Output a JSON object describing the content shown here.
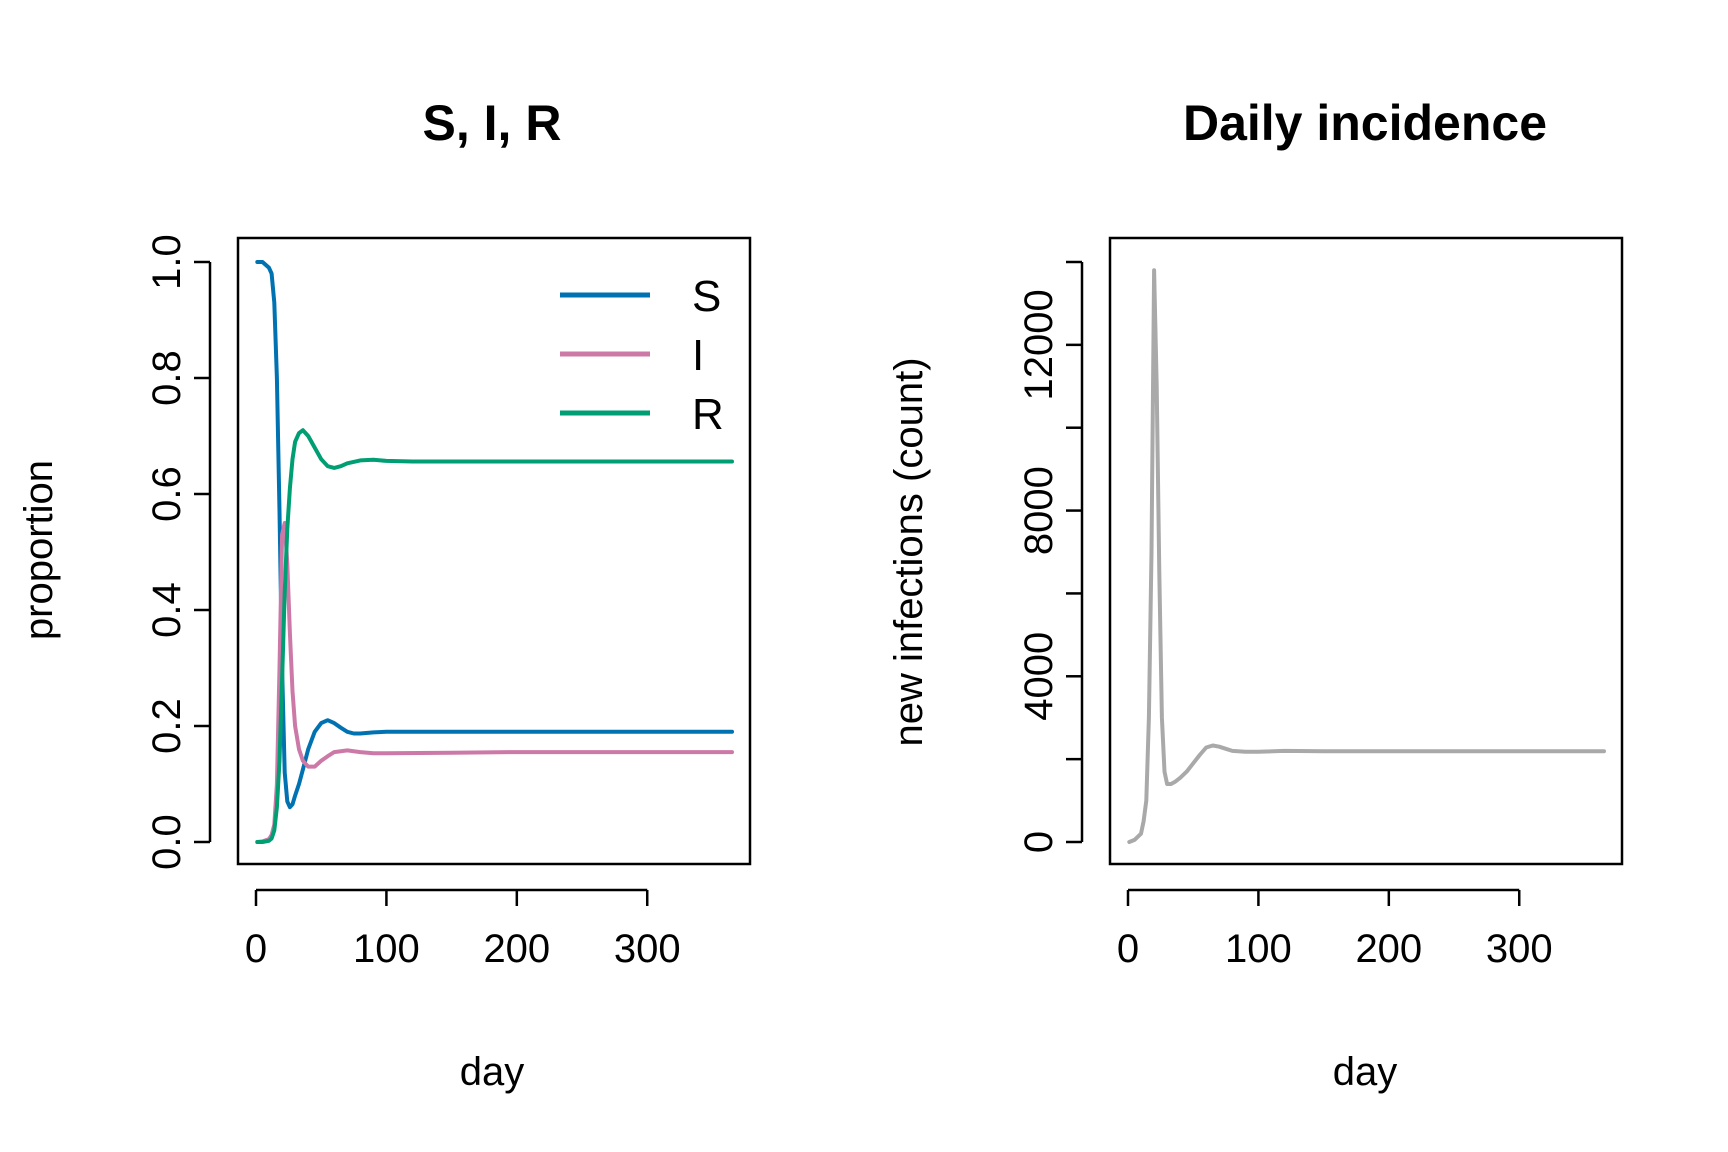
{
  "chart_data": [
    {
      "type": "line",
      "title": "S, I, R",
      "xlabel": "day",
      "ylabel": "proportion",
      "xlim": [
        0,
        365
      ],
      "ylim": [
        0,
        1
      ],
      "xticks": [
        0,
        100,
        200,
        300
      ],
      "yticks": [
        0.0,
        0.2,
        0.4,
        0.6,
        0.8,
        1.0
      ],
      "xtick_labels": [
        "0",
        "100",
        "200",
        "300"
      ],
      "ytick_labels": [
        "0.0",
        "0.2",
        "0.4",
        "0.6",
        "0.8",
        "1.0"
      ],
      "grid": false,
      "legend": {
        "position": "top-right",
        "entries": [
          "S",
          "I",
          "R"
        ]
      },
      "series": [
        {
          "name": "S",
          "color": "#0072B2",
          "x": [
            1,
            5,
            10,
            12,
            14,
            16,
            18,
            20,
            22,
            24,
            26,
            28,
            30,
            33,
            36,
            40,
            45,
            50,
            55,
            60,
            65,
            70,
            75,
            80,
            90,
            100,
            120,
            150,
            200,
            250,
            300,
            365
          ],
          "y": [
            1.0,
            1.0,
            0.99,
            0.98,
            0.93,
            0.8,
            0.57,
            0.3,
            0.12,
            0.07,
            0.06,
            0.065,
            0.08,
            0.1,
            0.125,
            0.16,
            0.19,
            0.205,
            0.21,
            0.205,
            0.197,
            0.19,
            0.187,
            0.187,
            0.189,
            0.19,
            0.19,
            0.19,
            0.19,
            0.19,
            0.19,
            0.19
          ]
        },
        {
          "name": "I",
          "color": "#CC79A7",
          "x": [
            1,
            5,
            10,
            12,
            14,
            16,
            18,
            20,
            22,
            24,
            26,
            28,
            30,
            33,
            36,
            40,
            45,
            50,
            55,
            60,
            70,
            80,
            90,
            100,
            150,
            200,
            250,
            300,
            365
          ],
          "y": [
            0.0,
            0.001,
            0.005,
            0.012,
            0.03,
            0.1,
            0.3,
            0.53,
            0.55,
            0.48,
            0.36,
            0.26,
            0.2,
            0.16,
            0.14,
            0.13,
            0.13,
            0.14,
            0.148,
            0.155,
            0.158,
            0.155,
            0.153,
            0.153,
            0.154,
            0.155,
            0.155,
            0.155,
            0.155
          ]
        },
        {
          "name": "R",
          "color": "#009E73",
          "x": [
            1,
            5,
            10,
            12,
            14,
            16,
            18,
            20,
            22,
            24,
            26,
            28,
            30,
            33,
            36,
            40,
            45,
            50,
            55,
            60,
            65,
            70,
            80,
            90,
            100,
            120,
            150,
            200,
            250,
            300,
            365
          ],
          "y": [
            0.0,
            0.0,
            0.002,
            0.006,
            0.02,
            0.06,
            0.14,
            0.28,
            0.43,
            0.54,
            0.61,
            0.66,
            0.69,
            0.705,
            0.71,
            0.7,
            0.68,
            0.66,
            0.648,
            0.645,
            0.648,
            0.653,
            0.658,
            0.659,
            0.657,
            0.656,
            0.656,
            0.656,
            0.656,
            0.656,
            0.656
          ]
        }
      ]
    },
    {
      "type": "line",
      "title": "Daily incidence",
      "xlabel": "day",
      "ylabel": "new infections (count)",
      "xlim": [
        0,
        365
      ],
      "ylim": [
        0,
        14000
      ],
      "xticks": [
        0,
        100,
        200,
        300
      ],
      "yticks": [
        0,
        2000,
        4000,
        6000,
        8000,
        10000,
        12000,
        14000
      ],
      "xtick_labels": [
        "0",
        "100",
        "200",
        "300"
      ],
      "ytick_labels": [
        "0",
        "",
        "4000",
        "",
        "8000",
        "",
        "12000",
        ""
      ],
      "grid": false,
      "series": [
        {
          "color": "#A9A9A9",
          "x": [
            1,
            5,
            10,
            12,
            14,
            16,
            18,
            20,
            22,
            24,
            26,
            28,
            30,
            33,
            36,
            40,
            45,
            50,
            55,
            60,
            65,
            70,
            75,
            80,
            90,
            100,
            120,
            150,
            200,
            250,
            300,
            365
          ],
          "y": [
            0,
            50,
            200,
            500,
            1000,
            3000,
            7000,
            13800,
            11000,
            6500,
            3000,
            1700,
            1400,
            1400,
            1450,
            1550,
            1700,
            1900,
            2100,
            2280,
            2330,
            2300,
            2250,
            2200,
            2180,
            2180,
            2200,
            2190,
            2190,
            2190,
            2190,
            2190
          ]
        }
      ]
    }
  ]
}
